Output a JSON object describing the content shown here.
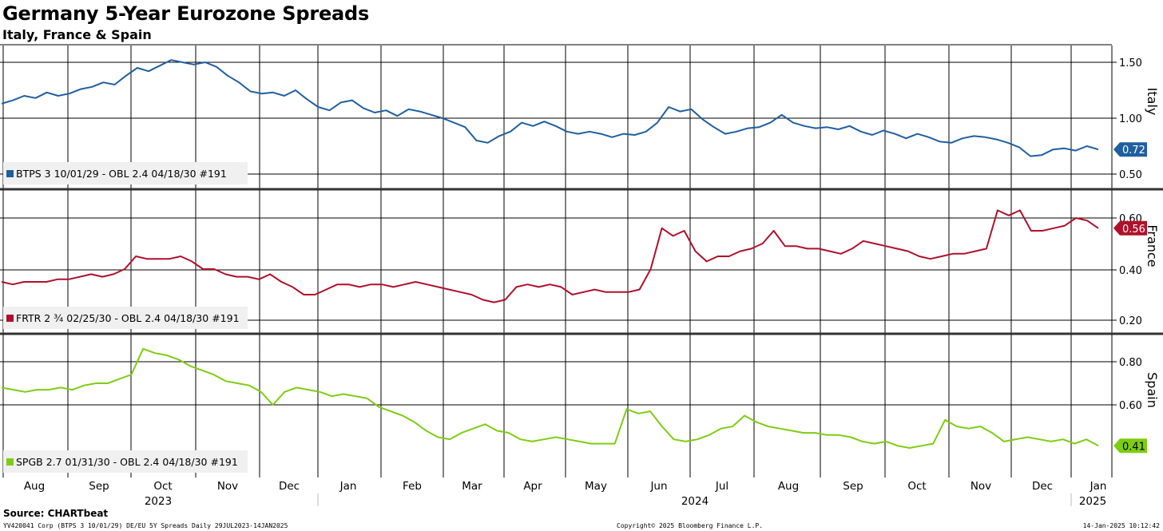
{
  "title": "Germany 5-Year Eurozone Spreads",
  "subtitle": "Italy, France & Spain",
  "source": "Source: CHARTbeat",
  "footer": {
    "left": "YV420041 Corp (BTPS 3 10/01/29) DE/EU 5Y Spreads  Daily 29JUL2023-14JAN2025",
    "middle": "Copyright© 2025 Bloomberg Finance L.P.",
    "right": "14-Jan-2025 10:12:42"
  },
  "colors": {
    "italy": "#1f5fa0",
    "france": "#b0102a",
    "spain": "#7dcd12",
    "grid": "#000000"
  },
  "chart_data": {
    "type": "line",
    "x_axis": {
      "months": [
        "Aug",
        "Sep",
        "Oct",
        "Nov",
        "Dec",
        "Jan",
        "Feb",
        "Mar",
        "Apr",
        "May",
        "Jun",
        "Jul",
        "Aug",
        "Sep",
        "Oct",
        "Nov",
        "Dec",
        "Jan"
      ],
      "years": [
        "2023",
        "2024",
        "2025"
      ],
      "range": [
        "2023-07-29",
        "2025-01-14"
      ]
    },
    "panels": [
      {
        "name": "Italy",
        "legend": "BTPS 3 10/01/29 - OBL 2.4 04/18/30 #191",
        "last_value_label": "0.72",
        "last_value": 0.72,
        "yticks": [
          "0.50",
          "1.00",
          "1.50"
        ],
        "ylim": [
          0.45,
          1.55
        ],
        "values": [
          1.13,
          1.16,
          1.2,
          1.18,
          1.23,
          1.2,
          1.22,
          1.26,
          1.28,
          1.32,
          1.3,
          1.38,
          1.45,
          1.42,
          1.47,
          1.52,
          1.5,
          1.48,
          1.5,
          1.46,
          1.38,
          1.32,
          1.24,
          1.22,
          1.23,
          1.2,
          1.25,
          1.17,
          1.1,
          1.07,
          1.14,
          1.16,
          1.09,
          1.05,
          1.07,
          1.02,
          1.08,
          1.06,
          1.03,
          1.0,
          0.96,
          0.92,
          0.8,
          0.78,
          0.84,
          0.88,
          0.96,
          0.93,
          0.97,
          0.93,
          0.88,
          0.86,
          0.88,
          0.86,
          0.83,
          0.86,
          0.85,
          0.88,
          0.96,
          1.1,
          1.06,
          1.08,
          0.99,
          0.92,
          0.86,
          0.88,
          0.91,
          0.92,
          0.96,
          1.03,
          0.96,
          0.93,
          0.91,
          0.92,
          0.9,
          0.93,
          0.88,
          0.85,
          0.89,
          0.86,
          0.82,
          0.86,
          0.83,
          0.79,
          0.78,
          0.82,
          0.84,
          0.83,
          0.81,
          0.78,
          0.74,
          0.66,
          0.67,
          0.72,
          0.73,
          0.71,
          0.75,
          0.72
        ]
      },
      {
        "name": "France",
        "legend": "FRTR 2 ¾ 02/25/30 - OBL 2.4 04/18/30 #191",
        "last_value_label": "0.56",
        "last_value": 0.56,
        "yticks": [
          "0.20",
          "0.40",
          "0.60"
        ],
        "ylim": [
          0.18,
          0.67
        ],
        "values": [
          0.35,
          0.34,
          0.35,
          0.35,
          0.35,
          0.36,
          0.36,
          0.37,
          0.38,
          0.37,
          0.38,
          0.4,
          0.45,
          0.44,
          0.44,
          0.44,
          0.45,
          0.43,
          0.4,
          0.4,
          0.38,
          0.37,
          0.37,
          0.36,
          0.38,
          0.35,
          0.33,
          0.3,
          0.3,
          0.32,
          0.34,
          0.34,
          0.33,
          0.34,
          0.34,
          0.33,
          0.34,
          0.35,
          0.34,
          0.33,
          0.32,
          0.31,
          0.3,
          0.28,
          0.27,
          0.28,
          0.33,
          0.34,
          0.33,
          0.34,
          0.33,
          0.3,
          0.31,
          0.32,
          0.31,
          0.31,
          0.31,
          0.32,
          0.4,
          0.56,
          0.53,
          0.55,
          0.47,
          0.43,
          0.45,
          0.45,
          0.47,
          0.48,
          0.5,
          0.55,
          0.49,
          0.49,
          0.48,
          0.48,
          0.47,
          0.46,
          0.48,
          0.51,
          0.5,
          0.49,
          0.48,
          0.47,
          0.45,
          0.44,
          0.45,
          0.46,
          0.46,
          0.47,
          0.48,
          0.63,
          0.61,
          0.63,
          0.55,
          0.55,
          0.56,
          0.57,
          0.6,
          0.59,
          0.56
        ]
      },
      {
        "name": "Spain",
        "legend": "SPGB 2.7 01/31/30 - OBL 2.4 04/18/30 #191",
        "last_value_label": "0.41",
        "last_value": 0.41,
        "yticks": [
          "0.60",
          "0.80"
        ],
        "ylim": [
          0.27,
          0.92
        ],
        "values": [
          0.68,
          0.67,
          0.66,
          0.67,
          0.67,
          0.68,
          0.67,
          0.69,
          0.7,
          0.7,
          0.72,
          0.74,
          0.86,
          0.84,
          0.83,
          0.81,
          0.78,
          0.76,
          0.74,
          0.71,
          0.7,
          0.69,
          0.66,
          0.6,
          0.66,
          0.68,
          0.67,
          0.66,
          0.64,
          0.65,
          0.64,
          0.63,
          0.59,
          0.57,
          0.55,
          0.52,
          0.48,
          0.45,
          0.44,
          0.47,
          0.49,
          0.51,
          0.48,
          0.47,
          0.44,
          0.43,
          0.44,
          0.45,
          0.44,
          0.43,
          0.42,
          0.42,
          0.42,
          0.58,
          0.56,
          0.57,
          0.5,
          0.44,
          0.43,
          0.44,
          0.46,
          0.49,
          0.5,
          0.55,
          0.52,
          0.5,
          0.49,
          0.48,
          0.47,
          0.47,
          0.46,
          0.46,
          0.45,
          0.43,
          0.42,
          0.43,
          0.41,
          0.4,
          0.41,
          0.42,
          0.53,
          0.5,
          0.49,
          0.5,
          0.47,
          0.43,
          0.44,
          0.45,
          0.44,
          0.43,
          0.44,
          0.42,
          0.44,
          0.41
        ]
      }
    ]
  }
}
